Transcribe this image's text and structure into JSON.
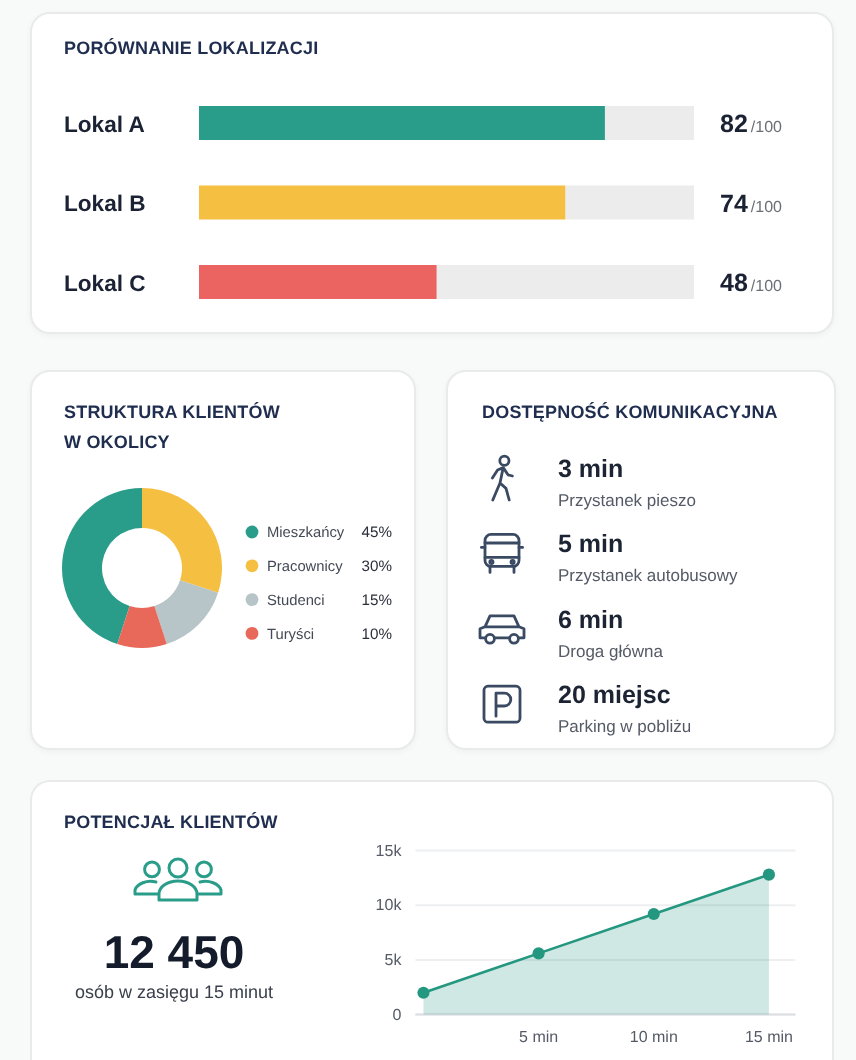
{
  "chart_data": [
    {
      "type": "bar",
      "title": "PORÓWNANIE LOKALIZACJI",
      "orientation": "horizontal",
      "categories": [
        "Lokal A",
        "Lokal B",
        "Lokal C"
      ],
      "values": [
        82,
        74,
        48
      ],
      "colors": [
        "#2a9d8a",
        "#f5bf42",
        "#ec6461"
      ],
      "xlim": [
        0,
        100
      ],
      "value_labels": [
        "82/100",
        "74/100",
        "48/100"
      ],
      "tick_labels": "y"
    },
    {
      "type": "donut",
      "title": "STRUKTURA KLIENTÓW W OKOLICY",
      "categories": [
        "Mieszkańcy",
        "Pracownicy",
        "Studenci",
        "Turyści"
      ],
      "values": [
        45,
        30,
        15,
        10
      ],
      "colors": [
        "#2a9d8a",
        "#f5bf42",
        "#b7c4c8",
        "#e8685a"
      ],
      "value_labels": [
        "45%",
        "30%",
        "15%",
        "10%"
      ],
      "legend": "right"
    },
    {
      "type": "other",
      "title": "DOSTĘPNOŚĆ KOMUNIKACYJNA",
      "annotations": [
        "3 min",
        "Przystanek pieszo",
        "5 min",
        "Przystanek autobusowy",
        "6 min",
        "Droga główna",
        "20 miejsc",
        "Parking w pobliżu"
      ]
    },
    {
      "type": "area",
      "title": "POTENCJAŁ KLIENTÓW",
      "annotations": [
        "12 450",
        "osób w zasięgu 15 minut"
      ],
      "x": [
        0,
        5,
        10,
        15
      ],
      "values": [
        2000,
        5600,
        9200,
        12800
      ],
      "color": "#23977f",
      "xlim": [
        -0.35,
        16.15
      ],
      "xticks": [
        {
          "value": 5,
          "label": "5 min"
        },
        {
          "value": 10,
          "label": "10 min"
        },
        {
          "value": 15,
          "label": "15 min"
        }
      ],
      "ylim": [
        0,
        15000
      ],
      "yticks": [
        0,
        {
          "value": 5000,
          "label": "5k"
        },
        {
          "value": 10000,
          "label": "10k"
        },
        {
          "value": 15000,
          "label": "15k"
        }
      ],
      "grid": "y",
      "marker": "circle"
    }
  ]
}
